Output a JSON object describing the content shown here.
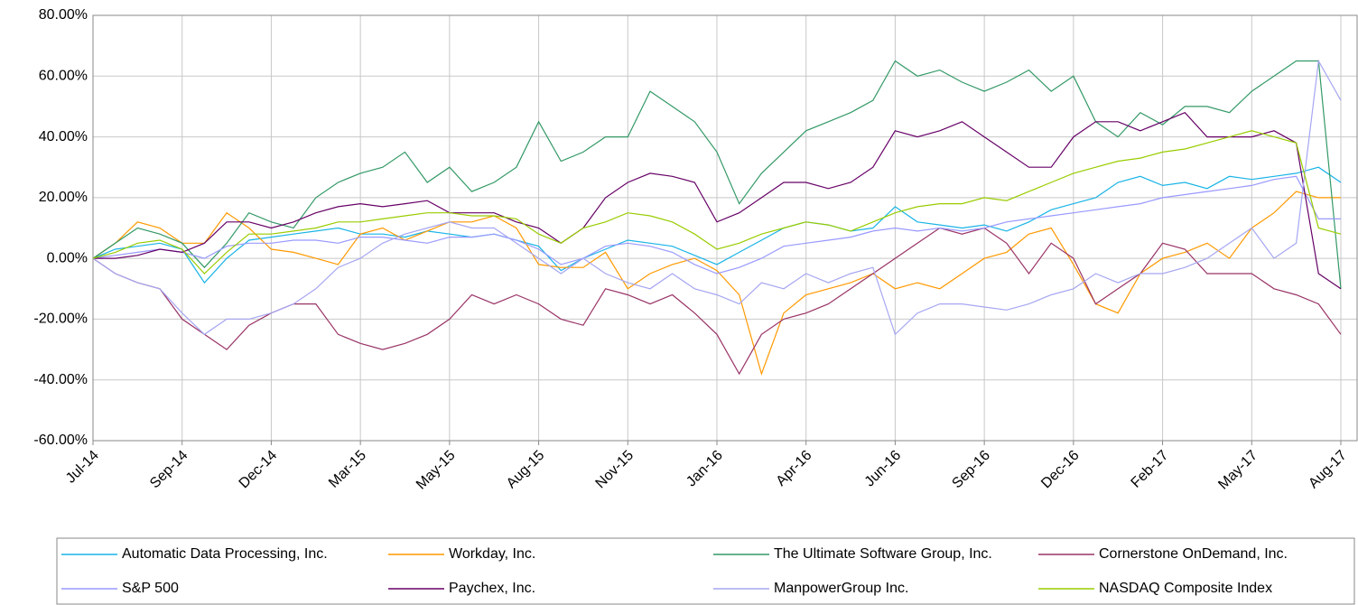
{
  "chart_data": {
    "type": "line",
    "categories": [
      "Jul-14",
      null,
      null,
      null,
      "Sep-14",
      null,
      null,
      null,
      "Dec-14",
      null,
      null,
      null,
      "Mar-15",
      null,
      null,
      null,
      "May-15",
      null,
      null,
      null,
      "Aug-15",
      null,
      null,
      null,
      "Nov-15",
      null,
      null,
      null,
      "Jan-16",
      null,
      null,
      null,
      "Apr-16",
      null,
      null,
      null,
      "Jun-16",
      null,
      null,
      null,
      "Sep-16",
      null,
      null,
      null,
      "Dec-16",
      null,
      null,
      null,
      "Feb-17",
      null,
      null,
      null,
      "May-17",
      null,
      null,
      null,
      "Aug-17"
    ],
    "series": [
      {
        "name": "Automatic Data Processing, Inc.",
        "color": "#19b4e6",
        "values": [
          0,
          3,
          4,
          5,
          3,
          -8,
          0,
          6,
          7,
          8,
          9,
          10,
          8,
          8,
          7,
          9,
          8,
          7,
          8,
          6,
          4,
          -4,
          0,
          3,
          6,
          5,
          4,
          1,
          -2,
          2,
          6,
          10,
          12,
          11,
          9,
          10,
          17,
          12,
          11,
          10,
          11,
          9,
          12,
          16,
          18,
          20,
          25,
          27,
          24,
          25,
          23,
          27,
          26,
          27,
          28,
          30,
          25
        ]
      },
      {
        "name": "Workday, Inc.",
        "color": "#ff9900",
        "values": [
          0,
          5,
          12,
          10,
          5,
          5,
          15,
          10,
          3,
          2,
          0,
          -2,
          8,
          10,
          6,
          9,
          12,
          12,
          14,
          10,
          -2,
          -3,
          -3,
          2,
          -10,
          -5,
          -2,
          0,
          -4,
          -12,
          -38,
          -18,
          -12,
          -10,
          -8,
          -5,
          -10,
          -8,
          -10,
          -5,
          0,
          2,
          8,
          10,
          -2,
          -15,
          -18,
          -5,
          0,
          2,
          5,
          0,
          10,
          15,
          22,
          20,
          20
        ]
      },
      {
        "name": "The Ultimate Software Group, Inc.",
        "color": "#339966",
        "values": [
          0,
          5,
          10,
          8,
          5,
          -3,
          5,
          15,
          12,
          10,
          20,
          25,
          28,
          30,
          35,
          25,
          30,
          22,
          25,
          30,
          45,
          32,
          35,
          40,
          40,
          55,
          50,
          45,
          35,
          18,
          28,
          35,
          42,
          45,
          48,
          52,
          65,
          60,
          62,
          58,
          55,
          58,
          62,
          55,
          60,
          45,
          40,
          48,
          44,
          50,
          50,
          48,
          55,
          60,
          65,
          65,
          -10
        ]
      },
      {
        "name": "Cornerstone OnDemand, Inc.",
        "color": "#993366",
        "values": [
          0,
          -5,
          -8,
          -10,
          -20,
          -25,
          -30,
          -22,
          -18,
          -15,
          -15,
          -25,
          -28,
          -30,
          -28,
          -25,
          -20,
          -12,
          -15,
          -12,
          -15,
          -20,
          -22,
          -10,
          -12,
          -15,
          -12,
          -18,
          -25,
          -38,
          -25,
          -20,
          -18,
          -15,
          -10,
          -5,
          0,
          5,
          10,
          8,
          10,
          5,
          -5,
          5,
          0,
          -15,
          -10,
          -5,
          5,
          3,
          -5,
          -5,
          -5,
          -10,
          -12,
          -15,
          -25
        ]
      },
      {
        "name": "S&P 500",
        "color": "#9999ff",
        "values": [
          0,
          1,
          2,
          3,
          2,
          0,
          4,
          5,
          5,
          6,
          6,
          5,
          7,
          7,
          6,
          5,
          7,
          7,
          8,
          6,
          3,
          -2,
          0,
          4,
          5,
          4,
          2,
          -2,
          -5,
          -3,
          0,
          4,
          5,
          6,
          7,
          9,
          10,
          9,
          10,
          9,
          10,
          12,
          13,
          14,
          15,
          16,
          17,
          18,
          20,
          21,
          22,
          23,
          24,
          26,
          27,
          13,
          13
        ]
      },
      {
        "name": "Paychex, Inc.",
        "color": "#660066",
        "values": [
          0,
          0,
          1,
          3,
          2,
          5,
          12,
          12,
          10,
          12,
          15,
          17,
          18,
          17,
          18,
          19,
          15,
          15,
          15,
          12,
          10,
          5,
          10,
          20,
          25,
          28,
          27,
          25,
          12,
          15,
          20,
          25,
          25,
          23,
          25,
          30,
          42,
          40,
          42,
          45,
          40,
          35,
          30,
          30,
          40,
          45,
          45,
          42,
          45,
          48,
          40,
          40,
          40,
          42,
          38,
          -5,
          -10
        ]
      },
      {
        "name": "ManpowerGroup Inc.",
        "color": "#a6a6f2",
        "values": [
          0,
          -5,
          -8,
          -10,
          -18,
          -25,
          -20,
          -20,
          -18,
          -15,
          -10,
          -3,
          0,
          5,
          8,
          10,
          12,
          10,
          10,
          5,
          0,
          -5,
          0,
          -5,
          -8,
          -10,
          -5,
          -10,
          -12,
          -15,
          -8,
          -10,
          -5,
          -8,
          -5,
          -3,
          -25,
          -18,
          -15,
          -15,
          -16,
          -17,
          -15,
          -12,
          -10,
          -5,
          -8,
          -5,
          -5,
          -3,
          0,
          5,
          10,
          0,
          5,
          65,
          52
        ]
      },
      {
        "name": "NASDAQ Composite Index",
        "color": "#99cc00",
        "values": [
          0,
          2,
          5,
          6,
          3,
          -5,
          2,
          8,
          8,
          9,
          10,
          12,
          12,
          13,
          14,
          15,
          15,
          14,
          14,
          13,
          8,
          5,
          10,
          12,
          15,
          14,
          12,
          8,
          3,
          5,
          8,
          10,
          12,
          11,
          9,
          12,
          15,
          17,
          18,
          18,
          20,
          19,
          22,
          25,
          28,
          30,
          32,
          33,
          35,
          36,
          38,
          40,
          42,
          40,
          38,
          10,
          8
        ]
      }
    ],
    "ylim": [
      -60,
      80
    ],
    "yticks": [
      {
        "value": -60,
        "label": "-60.00%"
      },
      {
        "value": -40,
        "label": "-40.00%"
      },
      {
        "value": -20,
        "label": "-20.00%"
      },
      {
        "value": 0,
        "label": "0.00%"
      },
      {
        "value": 20,
        "label": "20.00%"
      },
      {
        "value": 40,
        "label": "40.00%"
      },
      {
        "value": 60,
        "label": "60.00%"
      },
      {
        "value": 80,
        "label": "80.00%"
      }
    ],
    "grid": true
  }
}
